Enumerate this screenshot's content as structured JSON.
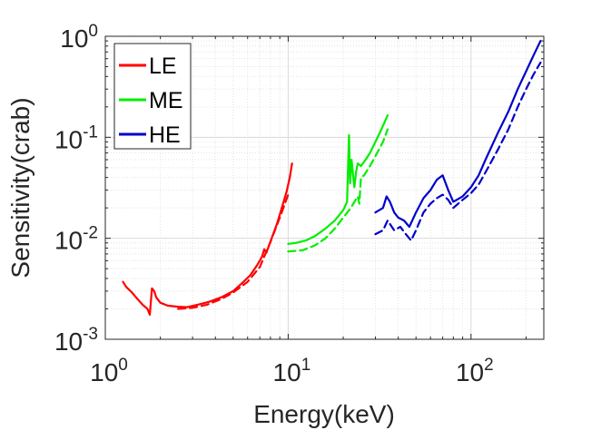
{
  "chart_data": {
    "type": "line",
    "title": "",
    "xlabel": "Energy(keV)",
    "ylabel": "Sensitivity(crab)",
    "xscale": "log",
    "yscale": "log",
    "xlim": [
      1,
      250
    ],
    "ylim": [
      0.001,
      1
    ],
    "grid": true,
    "minor_grid": true,
    "legend_position": "top-left",
    "x_ticks": [
      {
        "value": 1,
        "base": "10",
        "exp": "0"
      },
      {
        "value": 10,
        "base": "10",
        "exp": "1"
      },
      {
        "value": 100,
        "base": "10",
        "exp": "2"
      }
    ],
    "y_ticks": [
      {
        "value": 0.001,
        "base": "10",
        "exp": "-3"
      },
      {
        "value": 0.01,
        "base": "10",
        "exp": "-2"
      },
      {
        "value": 0.1,
        "base": "10",
        "exp": "-1"
      },
      {
        "value": 1,
        "base": "10",
        "exp": "0"
      }
    ],
    "series": [
      {
        "name": "LE",
        "color": "#ff0000",
        "solid": {
          "x": [
            1.25,
            1.3,
            1.4,
            1.5,
            1.6,
            1.7,
            1.75,
            1.8,
            1.85,
            1.9,
            2.0,
            2.2,
            2.5,
            2.8,
            3.2,
            3.7,
            4.3,
            5.0,
            5.6,
            6.2,
            6.8,
            7.2,
            7.4,
            7.6,
            7.8,
            8.2,
            8.7,
            9.3,
            9.8,
            10.2,
            10.5
          ],
          "y": [
            0.0037,
            0.0033,
            0.0029,
            0.0025,
            0.0022,
            0.002,
            0.00175,
            0.0032,
            0.003,
            0.0026,
            0.0023,
            0.00215,
            0.0021,
            0.00208,
            0.0022,
            0.00235,
            0.0026,
            0.003,
            0.0036,
            0.0043,
            0.0055,
            0.0066,
            0.0078,
            0.0072,
            0.0082,
            0.0105,
            0.014,
            0.021,
            0.029,
            0.04,
            0.055
          ]
        },
        "dashed": {
          "x": [
            2.5,
            3.0,
            3.6,
            4.3,
            5.0,
            6.0,
            7.0,
            8.0,
            9.0,
            10.0
          ],
          "y": [
            0.002,
            0.00205,
            0.0022,
            0.0025,
            0.0029,
            0.0037,
            0.0052,
            0.0092,
            0.016,
            0.027
          ]
        }
      },
      {
        "name": "ME",
        "color": "#00ee00",
        "solid": {
          "x": [
            10.0,
            11.0,
            12.5,
            14.0,
            16.0,
            18.0,
            20.0,
            21.0,
            21.5,
            21.8,
            22.2,
            23.0,
            23.5,
            24.0,
            25.0,
            26.5,
            28.0,
            30.0,
            32.0,
            35.0
          ],
          "y": [
            0.0088,
            0.009,
            0.0095,
            0.0105,
            0.0125,
            0.015,
            0.019,
            0.023,
            0.105,
            0.035,
            0.06,
            0.032,
            0.045,
            0.055,
            0.052,
            0.06,
            0.07,
            0.09,
            0.115,
            0.165
          ]
        },
        "dashed": {
          "x": [
            10.0,
            12.0,
            14.0,
            16.0,
            18.0,
            20.0,
            22.0,
            24.0,
            24.5,
            25.0,
            26.0,
            28.0,
            30.0,
            33.0,
            35.0
          ],
          "y": [
            0.0074,
            0.0076,
            0.0085,
            0.01,
            0.0125,
            0.016,
            0.02,
            0.026,
            0.022,
            0.04,
            0.042,
            0.052,
            0.065,
            0.09,
            0.12
          ]
        }
      },
      {
        "name": "HE",
        "color": "#0000cc",
        "solid": {
          "x": [
            30,
            33,
            34.5,
            36,
            38,
            40,
            43,
            46,
            50,
            55,
            60,
            65,
            70,
            75,
            80,
            90,
            100,
            110,
            120,
            140,
            160,
            180,
            200,
            220,
            240
          ],
          "y": [
            0.018,
            0.02,
            0.026,
            0.023,
            0.018,
            0.016,
            0.015,
            0.013,
            0.018,
            0.025,
            0.03,
            0.038,
            0.042,
            0.03,
            0.023,
            0.026,
            0.032,
            0.042,
            0.06,
            0.11,
            0.18,
            0.3,
            0.45,
            0.65,
            0.9
          ]
        },
        "dashed": {
          "x": [
            30,
            33,
            35,
            38,
            41,
            44,
            47,
            50,
            55,
            60,
            65,
            70,
            75,
            80,
            90,
            100,
            110,
            120,
            140,
            160,
            180,
            200,
            220,
            240
          ],
          "y": [
            0.011,
            0.012,
            0.015,
            0.012,
            0.013,
            0.011,
            0.0095,
            0.012,
            0.018,
            0.022,
            0.025,
            0.027,
            0.024,
            0.02,
            0.024,
            0.028,
            0.034,
            0.045,
            0.075,
            0.12,
            0.2,
            0.3,
            0.42,
            0.55
          ]
        }
      }
    ]
  }
}
